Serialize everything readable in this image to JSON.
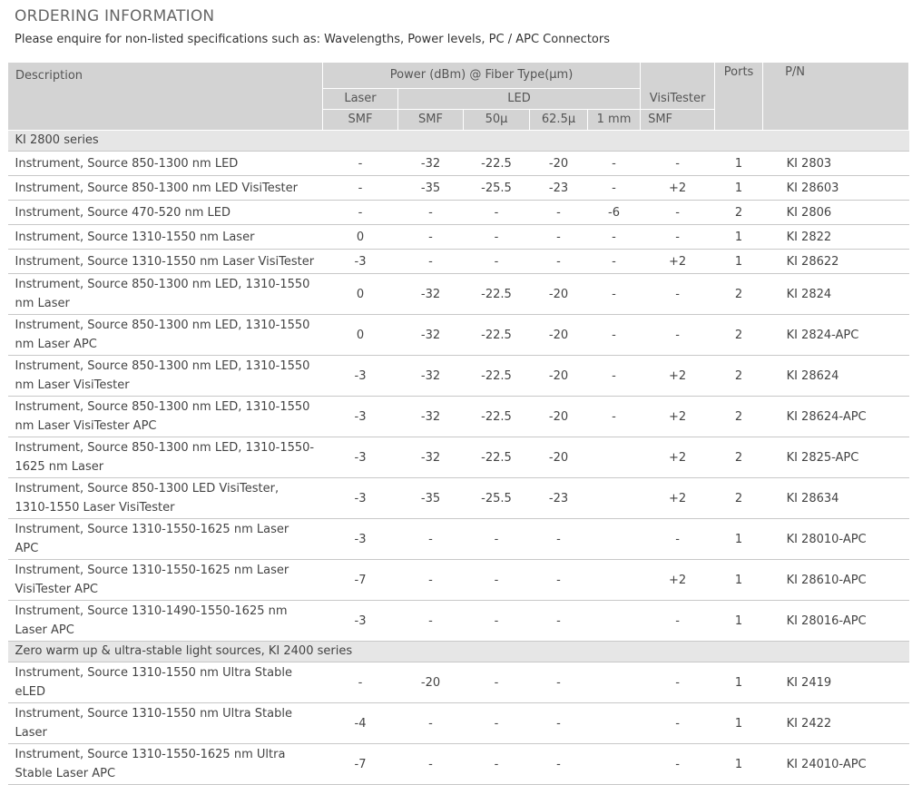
{
  "header": {
    "title": "ORDERING INFORMATION",
    "subtitle": "Please enquire for non-listed specifications such as:  Wavelengths, Power levels, PC / APC Connectors"
  },
  "table": {
    "head": {
      "description": "Description",
      "power": "Power (dBm) @ Fiber Type(µm)",
      "laser": "Laser",
      "led": "LED",
      "visitester": "VisiTester",
      "ports": "Ports",
      "pn": "P/N",
      "fibers": [
        "SMF",
        "SMF",
        "50µ",
        "62.5µ",
        "1 mm",
        "SMF"
      ]
    },
    "sections": [
      {
        "title": "KI 2800 series",
        "rows": [
          [
            "Instrument, Source 850-1300 nm LED",
            "-",
            "-32",
            "-22.5",
            "-20",
            "-",
            "-",
            "1",
            "KI 2803"
          ],
          [
            "Instrument, Source 850-1300 nm LED VisiTester",
            "-",
            "-35",
            "-25.5",
            "-23",
            "-",
            "+2",
            "1",
            "KI 28603"
          ],
          [
            "Instrument, Source 470-520 nm LED",
            "-",
            "-",
            "-",
            "-",
            "-6",
            "-",
            "2",
            "KI 2806"
          ],
          [
            "Instrument, Source 1310-1550 nm Laser",
            "0",
            "-",
            "-",
            "-",
            "-",
            "-",
            "1",
            "KI 2822"
          ],
          [
            "Instrument, Source 1310-1550 nm Laser VisiTester",
            "-3",
            "-",
            "-",
            "-",
            "-",
            "+2",
            "1",
            "KI 28622"
          ],
          [
            "Instrument, Source 850-1300 nm LED, 1310-1550 nm Laser",
            "0",
            "-32",
            "-22.5",
            "-20",
            "-",
            "-",
            "2",
            "KI 2824"
          ],
          [
            "Instrument, Source 850-1300 nm LED, 1310-1550 nm Laser APC",
            "0",
            "-32",
            "-22.5",
            "-20",
            "-",
            "-",
            "2",
            "KI 2824-APC"
          ],
          [
            "Instrument, Source 850-1300 nm LED, 1310-1550 nm Laser VisiTester",
            "-3",
            "-32",
            "-22.5",
            "-20",
            "-",
            "+2",
            "2",
            "KI 28624"
          ],
          [
            "Instrument, Source 850-1300 nm LED, 1310-1550 nm Laser VisiTester APC",
            "-3",
            "-32",
            "-22.5",
            "-20",
            "-",
            "+2",
            "2",
            "KI 28624-APC"
          ],
          [
            "Instrument, Source 850-1300 nm LED, 1310-1550-1625 nm Laser",
            "-3",
            "-32",
            "-22.5",
            "-20",
            "",
            "+2",
            "2",
            "KI 2825-APC"
          ],
          [
            "Instrument, Source 850-1300 LED VisiTester, 1310-1550 Laser VisiTester",
            "-3",
            "-35",
            "-25.5",
            "-23",
            "",
            "+2",
            "2",
            "KI 28634"
          ],
          [
            "Instrument, Source 1310-1550-1625 nm Laser APC",
            "-3",
            "-",
            "-",
            "-",
            "",
            "-",
            "1",
            "KI 28010-APC"
          ],
          [
            "Instrument, Source 1310-1550-1625 nm Laser VisiTester APC",
            "-7",
            "-",
            "-",
            "-",
            "",
            "+2",
            "1",
            "KI 28610-APC"
          ],
          [
            "Instrument, Source 1310-1490-1550-1625 nm Laser APC",
            "-3",
            "-",
            "-",
            "-",
            "",
            "-",
            "1",
            "KI 28016-APC"
          ]
        ]
      },
      {
        "title": "Zero warm up & ultra-stable light sources, KI 2400 series",
        "rows": [
          [
            "Instrument, Source 1310-1550 nm Ultra Stable eLED",
            "-",
            "-20",
            "-",
            "-",
            "",
            "-",
            "1",
            "KI 2419"
          ],
          [
            "Instrument, Source 1310-1550 nm Ultra Stable Laser",
            "-4",
            "-",
            "-",
            "-",
            "",
            "-",
            "1",
            "KI 2422"
          ],
          [
            "Instrument, Source 1310-1550-1625 nm Ultra Stable Laser APC",
            "-7",
            "-",
            "-",
            "-",
            "",
            "-",
            "1",
            "KI 24010-APC"
          ]
        ]
      }
    ]
  }
}
